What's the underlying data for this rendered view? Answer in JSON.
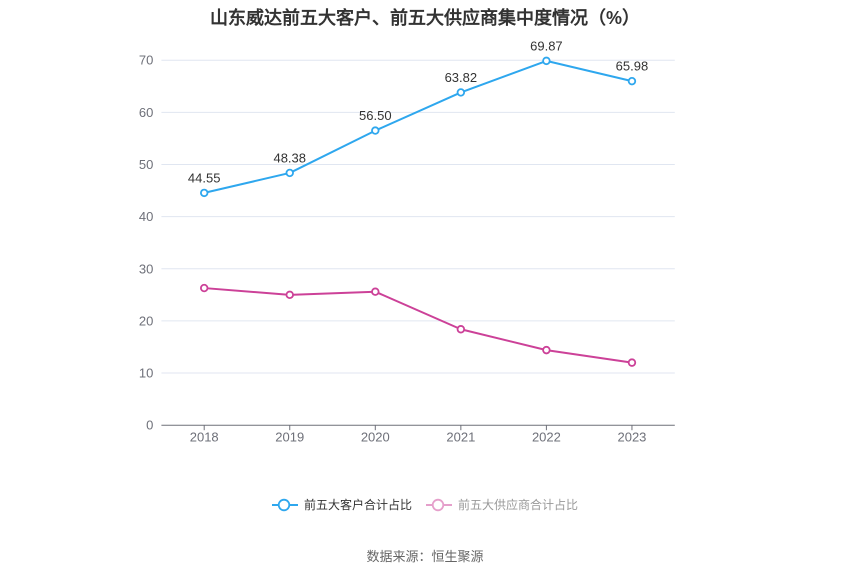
{
  "title": "山东威达前五大客户、前五大供应商集中度情况（%）",
  "source_note": "数据来源：恒生聚源",
  "legend": {
    "position": "bottom-center",
    "items": [
      {
        "label": "前五大客户合计占比",
        "color": "#2ea7ee",
        "dimmed": false
      },
      {
        "label": "前五大供应商合计占比",
        "color": "#cc4198",
        "dimmed": true
      }
    ]
  },
  "colors": {
    "customer_line": "#2ea7ee",
    "supplier_line": "#cc4198",
    "grid_line": "#e0e6f1",
    "axis_line": "#6e7079",
    "axis_label": "#6e7079",
    "data_label": "#333333",
    "title_text": "#333333",
    "background": "#ffffff"
  },
  "chart_data": {
    "type": "line",
    "title": "山东威达前五大客户、前五大供应商集中度情况（%）",
    "categories": [
      "2018",
      "2019",
      "2020",
      "2021",
      "2022",
      "2023"
    ],
    "series": [
      {
        "name": "前五大客户合计占比",
        "color": "#2ea7ee",
        "values": [
          44.55,
          48.38,
          56.5,
          63.82,
          69.87,
          65.98
        ],
        "data_labels": [
          "44.55",
          "48.38",
          "56.50",
          "63.82",
          "69.87",
          "65.98"
        ],
        "show_labels": true
      },
      {
        "name": "前五大供应商合计占比",
        "color": "#cc4198",
        "values": [
          26.3,
          25.0,
          25.6,
          18.4,
          14.4,
          12.0
        ],
        "data_labels": [],
        "show_labels": false
      }
    ],
    "xlabel": "",
    "ylabel": "",
    "ylim": [
      0,
      70
    ],
    "y_ticks": [
      0,
      10,
      20,
      30,
      40,
      50,
      60,
      70
    ],
    "grid": true,
    "legend_position": "bottom",
    "marker": "hollow-circle"
  }
}
